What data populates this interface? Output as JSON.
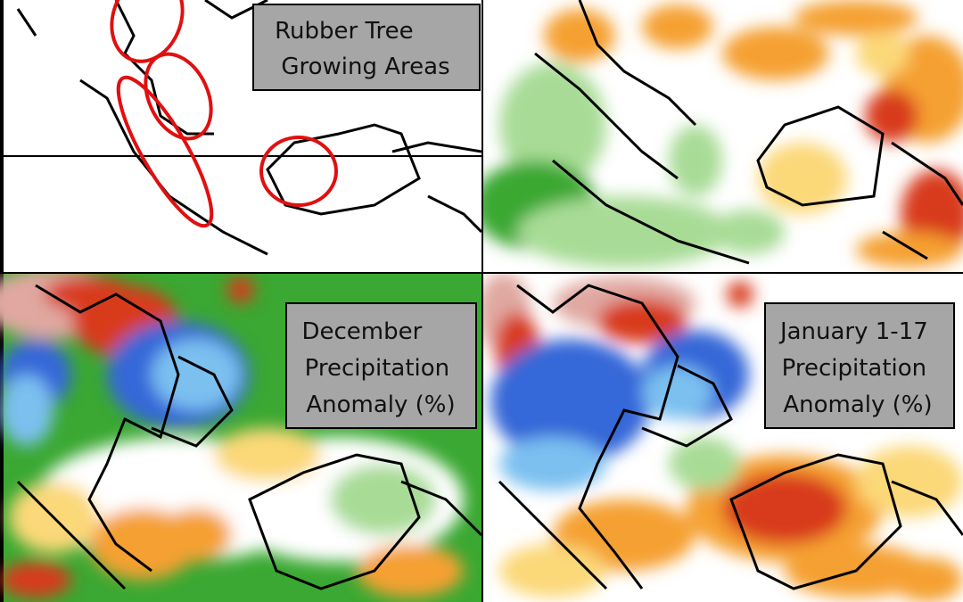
{
  "panels": [
    {
      "label_lines": [
        "Rubber Tree",
        "Growing Areas"
      ]
    },
    {},
    {
      "label_lines": [
        "December",
        "Precipitation",
        "Anomaly (%)"
      ]
    },
    {
      "label_lines": [
        "January 1-17",
        "Precipitation",
        "Anomaly (%)"
      ]
    }
  ]
}
